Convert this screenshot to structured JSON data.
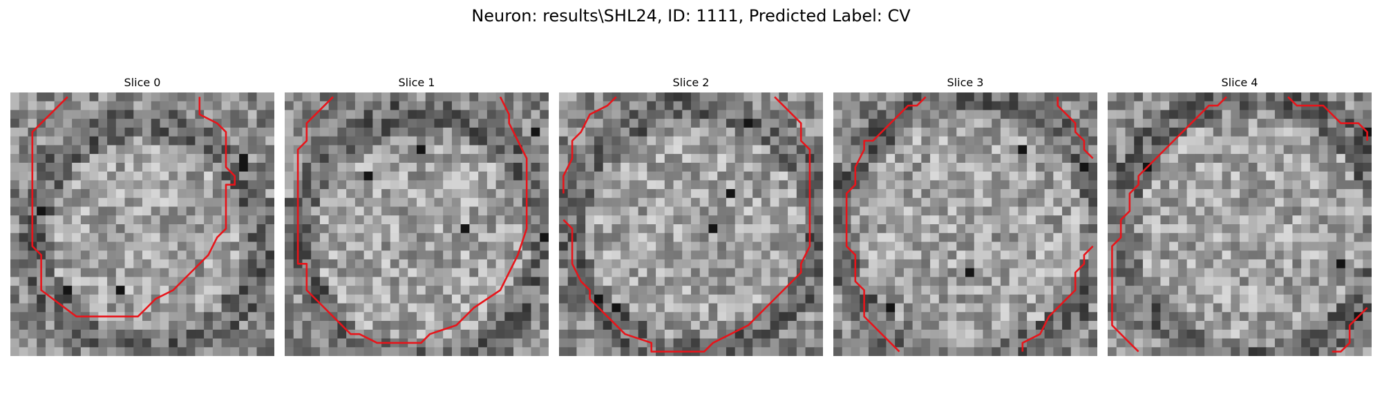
{
  "figure": {
    "title": "Neuron: results\\SHL24, ID: 1111, Predicted Label: CV"
  },
  "grid_size": 30,
  "contour_color": "#e8141a",
  "panels": [
    {
      "title": "Slice 0",
      "seed": 11,
      "brighten_center": [
        15,
        16
      ],
      "dark_ring_radius": 13,
      "contour": [
        [
          6,
          0
        ],
        [
          2,
          4
        ],
        [
          2,
          17
        ],
        [
          3,
          18
        ],
        [
          3,
          22
        ],
        [
          7,
          25
        ],
        [
          8,
          25
        ],
        [
          14,
          25
        ],
        [
          15,
          24
        ],
        [
          16,
          23
        ],
        [
          18,
          22
        ],
        [
          20,
          20
        ],
        [
          22,
          18
        ],
        [
          23,
          16
        ],
        [
          24,
          15
        ],
        [
          24,
          10
        ],
        [
          25,
          10
        ],
        [
          25,
          9
        ],
        [
          24,
          8
        ],
        [
          24,
          4
        ],
        [
          23,
          3
        ],
        [
          21,
          2
        ],
        [
          21,
          0
        ]
      ],
      "dark_spots": [
        [
          26,
          7
        ],
        [
          26,
          8
        ],
        [
          6,
          22
        ],
        [
          12,
          22
        ],
        [
          3,
          13
        ]
      ]
    },
    {
      "title": "Slice 1",
      "seed": 23,
      "brighten_center": [
        15,
        16
      ],
      "dark_ring_radius": 14,
      "contour": [
        [
          5,
          0
        ],
        [
          2,
          3
        ],
        [
          2,
          5
        ],
        [
          1,
          6
        ],
        [
          1,
          19
        ],
        [
          2,
          19
        ],
        [
          2,
          22
        ],
        [
          7,
          27
        ],
        [
          8,
          27
        ],
        [
          10,
          28
        ],
        [
          15,
          28
        ],
        [
          16,
          27
        ],
        [
          19,
          26
        ],
        [
          21,
          24
        ],
        [
          24,
          22
        ],
        [
          26,
          18
        ],
        [
          27,
          15
        ],
        [
          27,
          7
        ],
        [
          26,
          5
        ],
        [
          25,
          3
        ],
        [
          25,
          2
        ],
        [
          24,
          0
        ]
      ],
      "dark_spots": [
        [
          9,
          9
        ],
        [
          20,
          15
        ],
        [
          29,
          16
        ],
        [
          28,
          4
        ],
        [
          15,
          6
        ]
      ]
    },
    {
      "title": "Slice 2",
      "seed": 37,
      "brighten_center": [
        15,
        15
      ],
      "dark_ring_radius": 14,
      "contour": [
        [
          6,
          0
        ],
        [
          5,
          1
        ],
        [
          3,
          2
        ],
        [
          2,
          4
        ],
        [
          1,
          5
        ],
        [
          1,
          7
        ],
        [
          0,
          9
        ],
        [
          0,
          11
        ]
      ],
      "contour_b": [
        [
          0,
          14
        ],
        [
          1,
          15
        ],
        [
          1,
          19
        ],
        [
          2,
          21
        ],
        [
          3,
          22
        ],
        [
          3,
          23
        ],
        [
          4,
          24
        ],
        [
          6,
          26
        ],
        [
          7,
          27
        ],
        [
          10,
          28
        ],
        [
          10,
          29
        ],
        [
          16,
          29
        ],
        [
          17,
          28
        ],
        [
          19,
          27
        ],
        [
          21,
          26
        ],
        [
          23,
          24
        ],
        [
          25,
          22
        ],
        [
          27,
          20
        ],
        [
          27,
          19
        ],
        [
          28,
          17
        ],
        [
          28,
          6
        ],
        [
          27,
          5
        ],
        [
          27,
          3
        ],
        [
          26,
          2
        ],
        [
          24,
          0
        ]
      ],
      "dark_spots": [
        [
          17,
          15
        ],
        [
          6,
          24
        ],
        [
          4,
          23
        ],
        [
          19,
          11
        ],
        [
          21,
          3
        ]
      ]
    },
    {
      "title": "Slice 3",
      "seed": 53,
      "brighten_center": [
        15,
        15
      ],
      "dark_ring_radius": 15,
      "contour": [
        [
          10,
          0
        ],
        [
          9,
          1
        ],
        [
          8,
          1
        ],
        [
          7,
          2
        ],
        [
          4,
          5
        ],
        [
          3,
          5
        ],
        [
          3,
          6
        ],
        [
          2,
          8
        ],
        [
          2,
          10
        ],
        [
          1,
          11
        ],
        [
          1,
          17
        ],
        [
          2,
          18
        ],
        [
          2,
          21
        ],
        [
          3,
          22
        ],
        [
          3,
          25
        ],
        [
          4,
          26
        ],
        [
          5,
          27
        ],
        [
          6,
          28
        ],
        [
          7,
          29
        ]
      ],
      "contour_b": [
        [
          25,
          0
        ],
        [
          25,
          1
        ],
        [
          27,
          3
        ],
        [
          27,
          4
        ],
        [
          28,
          5
        ],
        [
          28,
          6
        ],
        [
          29,
          7
        ]
      ],
      "contour_c": [
        [
          29,
          17
        ],
        [
          28,
          18
        ],
        [
          28,
          19
        ],
        [
          27,
          20
        ],
        [
          27,
          21
        ],
        [
          27,
          22
        ],
        [
          26,
          23
        ],
        [
          25,
          24
        ],
        [
          24,
          25
        ],
        [
          23,
          27
        ],
        [
          21,
          28
        ],
        [
          21,
          29
        ]
      ],
      "dark_spots": [
        [
          28,
          8
        ],
        [
          6,
          24
        ],
        [
          15,
          20
        ],
        [
          21,
          6
        ]
      ]
    },
    {
      "title": "Slice 4",
      "seed": 71,
      "brighten_center": [
        16,
        15
      ],
      "dark_ring_radius": 15,
      "contour": [
        [
          13,
          0
        ],
        [
          12,
          1
        ],
        [
          11,
          1
        ],
        [
          9,
          3
        ],
        [
          7,
          5
        ],
        [
          5,
          7
        ],
        [
          3,
          9
        ],
        [
          3,
          10
        ],
        [
          2,
          11
        ],
        [
          2,
          13
        ],
        [
          1,
          14
        ],
        [
          1,
          16
        ],
        [
          0,
          17
        ],
        [
          0,
          26
        ],
        [
          2,
          28
        ],
        [
          3,
          29
        ]
      ],
      "contour_b": [
        [
          20,
          0
        ],
        [
          21,
          1
        ],
        [
          24,
          1
        ],
        [
          26,
          3
        ],
        [
          28,
          3
        ],
        [
          29,
          4
        ],
        [
          29,
          5
        ]
      ],
      "contour_c": [
        [
          29,
          24
        ],
        [
          28,
          25
        ],
        [
          27,
          26
        ],
        [
          27,
          28
        ],
        [
          26,
          29
        ],
        [
          25,
          29
        ]
      ],
      "dark_spots": [
        [
          29,
          4
        ],
        [
          4,
          8
        ],
        [
          28,
          25
        ],
        [
          26,
          19
        ]
      ]
    }
  ]
}
